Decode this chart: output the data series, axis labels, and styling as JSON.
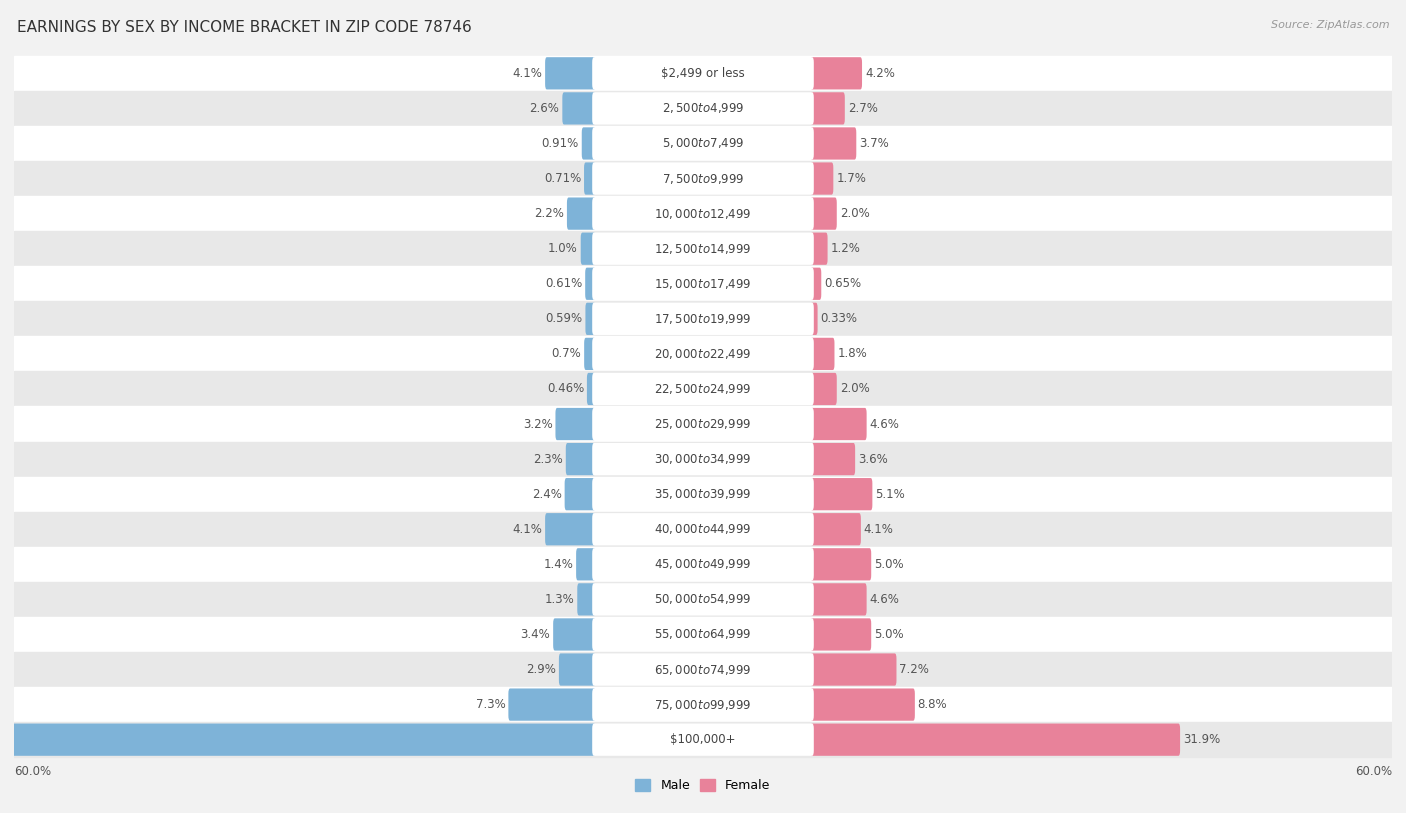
{
  "title": "EARNINGS BY SEX BY INCOME BRACKET IN ZIP CODE 78746",
  "source": "Source: ZipAtlas.com",
  "categories": [
    "$2,499 or less",
    "$2,500 to $4,999",
    "$5,000 to $7,499",
    "$7,500 to $9,999",
    "$10,000 to $12,499",
    "$12,500 to $14,999",
    "$15,000 to $17,499",
    "$17,500 to $19,999",
    "$20,000 to $22,499",
    "$22,500 to $24,999",
    "$25,000 to $29,999",
    "$30,000 to $34,999",
    "$35,000 to $39,999",
    "$40,000 to $44,999",
    "$45,000 to $49,999",
    "$50,000 to $54,999",
    "$55,000 to $64,999",
    "$65,000 to $74,999",
    "$75,000 to $99,999",
    "$100,000+"
  ],
  "male_values": [
    4.1,
    2.6,
    0.91,
    0.71,
    2.2,
    1.0,
    0.61,
    0.59,
    0.7,
    0.46,
    3.2,
    2.3,
    2.4,
    4.1,
    1.4,
    1.3,
    3.4,
    2.9,
    7.3,
    57.9
  ],
  "female_values": [
    4.2,
    2.7,
    3.7,
    1.7,
    2.0,
    1.2,
    0.65,
    0.33,
    1.8,
    2.0,
    4.6,
    3.6,
    5.1,
    4.1,
    5.0,
    4.6,
    5.0,
    7.2,
    8.8,
    31.9
  ],
  "male_color": "#7eb3d8",
  "female_color": "#e8829a",
  "male_label": "Male",
  "female_label": "Female",
  "x_max": 60.0,
  "bg_color": "#f2f2f2",
  "row_even_color": "#ffffff",
  "row_odd_color": "#e8e8e8",
  "title_fontsize": 11,
  "label_fontsize": 8.5,
  "category_fontsize": 8.5,
  "value_color": "#555555",
  "cat_label_color": "#444444"
}
